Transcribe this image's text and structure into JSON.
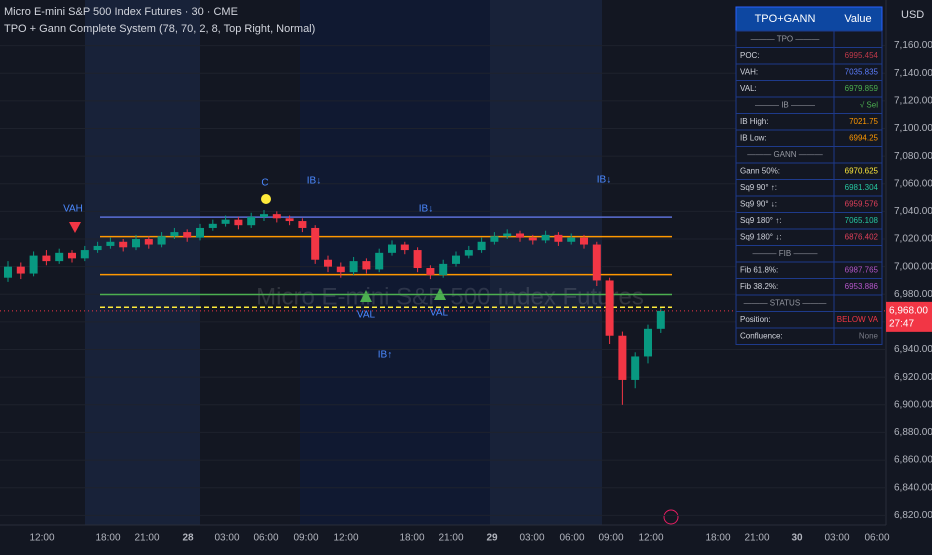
{
  "header": {
    "symbol": "Micro E-mini S&P 500 Index Futures · 30 · CME",
    "indicator": "TPO + Gann Complete System (78, 70, 2, 8, Top Right, Normal)",
    "currency": "USD"
  },
  "chart_data": {
    "type": "candlestick",
    "watermark": "Micro E-mini S&P 500 Index Futures",
    "up_color": "#089981",
    "down_color": "#f23645",
    "open": [
      6992,
      7000,
      6995,
      7008,
      7004,
      7010,
      7006,
      7012,
      7015,
      7018,
      7014,
      7020,
      7016,
      7022,
      7025,
      7021,
      7028,
      7031,
      7034,
      7030,
      7036,
      7038,
      7035,
      7033,
      7028,
      7005,
      7000,
      6996,
      7004,
      6998,
      7010,
      7016,
      7012,
      6999,
      6994,
      7002,
      7008,
      7012,
      7018,
      7022,
      7024,
      7021,
      7019,
      7023,
      7018,
      7021,
      7016,
      6990,
      6950,
      6918,
      6935,
      6955
    ],
    "high": [
      7004,
      7003,
      7011,
      7012,
      7013,
      7012,
      7015,
      7018,
      7021,
      7020,
      7023,
      7022,
      7025,
      7028,
      7027,
      7031,
      7034,
      7037,
      7036,
      7039,
      7041,
      7040,
      7037,
      7035,
      7030,
      7008,
      7003,
      7007,
      7006,
      7013,
      7019,
      7018,
      7014,
      7001,
      7005,
      7011,
      7015,
      7021,
      7025,
      7027,
      7026,
      7023,
      7026,
      7025,
      7024,
      7023,
      7018,
      6992,
      6953,
      6938,
      6958,
      6970
    ],
    "low": [
      6989,
      6991,
      6993,
      7001,
      7002,
      7003,
      7004,
      7010,
      7013,
      7011,
      7012,
      7013,
      7014,
      7020,
      7018,
      7019,
      7026,
      7029,
      7027,
      7028,
      7033,
      7032,
      7030,
      7025,
      7002,
      6996,
      6992,
      6994,
      6995,
      6996,
      7008,
      7009,
      6996,
      6991,
      6992,
      7000,
      7006,
      7010,
      7016,
      7020,
      7018,
      7016,
      7017,
      7015,
      7016,
      7013,
      6986,
      6944,
      6900,
      6912,
      6930,
      6952
    ],
    "close": [
      7000,
      6995,
      7008,
      7004,
      7010,
      7006,
      7012,
      7015,
      7018,
      7014,
      7020,
      7016,
      7022,
      7025,
      7021,
      7028,
      7031,
      7034,
      7030,
      7036,
      7038,
      7035,
      7033,
      7028,
      7005,
      7000,
      6996,
      7004,
      6998,
      7010,
      7016,
      7012,
      6999,
      6994,
      7002,
      7008,
      7012,
      7018,
      7022,
      7024,
      7021,
      7019,
      7023,
      7018,
      7021,
      7016,
      6990,
      6950,
      6918,
      6935,
      6955,
      6968
    ],
    "ylim": [
      6813,
      7193
    ],
    "yticks": [
      {
        "value": 7160,
        "label": "7,160.00"
      },
      {
        "value": 7140,
        "label": "7,140.00"
      },
      {
        "value": 7120,
        "label": "7,120.00"
      },
      {
        "value": 7100,
        "label": "7,100.00"
      },
      {
        "value": 7080,
        "label": "7,080.00"
      },
      {
        "value": 7060,
        "label": "7,060.00"
      },
      {
        "value": 7040,
        "label": "7,040.00"
      },
      {
        "value": 7020,
        "label": "7,020.00"
      },
      {
        "value": 7000,
        "label": "7,000.00"
      },
      {
        "value": 6980,
        "label": "6,980.00"
      },
      {
        "value": 6960,
        "label": "6,960.00"
      },
      {
        "value": 6940,
        "label": "6,940.00"
      },
      {
        "value": 6920,
        "label": "6,920.00"
      },
      {
        "value": 6900,
        "label": "6,900.00"
      },
      {
        "value": 6880,
        "label": "6,880.00"
      },
      {
        "value": 6860,
        "label": "6,860.00"
      },
      {
        "value": 6840,
        "label": "6,840.00"
      },
      {
        "value": 6820,
        "label": "6,820.00"
      }
    ],
    "time_labels": [
      "12:00",
      "18:00",
      "21:00",
      "28",
      "03:00",
      "06:00",
      "09:00",
      "12:00",
      "18:00",
      "21:00",
      "29",
      "03:00",
      "06:00",
      "09:00",
      "12:00",
      "18:00",
      "21:00",
      "30",
      "03:00",
      "06:00"
    ],
    "levels": [
      {
        "value": 7021.75,
        "color": "#ff9800"
      },
      {
        "value": 6994.25,
        "color": "#ff9800"
      },
      {
        "value": 7035.835,
        "color": "#5b6fd6"
      },
      {
        "value": 6979.859,
        "color": "#4caf50"
      },
      {
        "value": 6970.625,
        "color": "#ffeb3b"
      }
    ],
    "last_price": {
      "value": 6968,
      "label": "6,968.00"
    },
    "countdown": "27:47",
    "annotations": [
      {
        "text": "VAH",
        "color": "#4b89ff"
      },
      {
        "text": "VAL",
        "color": "#4b89ff"
      },
      {
        "text": "VAL",
        "color": "#4b89ff"
      },
      {
        "text": "IB↑",
        "color": "#4b89ff"
      },
      {
        "text": "IB↓",
        "color": "#4b89ff"
      },
      {
        "text": "IB↓",
        "color": "#4b89ff"
      },
      {
        "text": "IB↓",
        "color": "#4b89ff"
      },
      {
        "text": "C",
        "color": "#4b89ff"
      }
    ]
  },
  "table": {
    "headers": [
      "TPO+GANN",
      "Value"
    ],
    "rows": [
      {
        "section": "——— TPO ———"
      },
      {
        "label": "POC:",
        "value": "6995.454",
        "color": "#c0394a"
      },
      {
        "label": "VAH:",
        "value": "7035.835",
        "color": "#5b7cfa"
      },
      {
        "label": "VAL:",
        "value": "6979.859",
        "color": "#4caf50"
      },
      {
        "section": "——— IB ———",
        "value": "√ Sel",
        "color": "#4caf50"
      },
      {
        "label": "IB High:",
        "value": "7021.75",
        "color": "#ff9800"
      },
      {
        "label": "IB Low:",
        "value": "6994.25",
        "color": "#ff9800"
      },
      {
        "section": "——— GANN ———"
      },
      {
        "label": "Gann 50%:",
        "value": "6970.625",
        "color": "#ffeb3b"
      },
      {
        "label": "Sq9 90° ↑:",
        "value": "6981.304",
        "color": "#26c6a0"
      },
      {
        "label": "Sq9 90° ↓:",
        "value": "6959.576",
        "color": "#e0405a"
      },
      {
        "label": "Sq9 180° ↑:",
        "value": "7065.108",
        "color": "#26c6a0"
      },
      {
        "label": "Sq9 180° ↓:",
        "value": "6876.402",
        "color": "#e0405a"
      },
      {
        "section": "——— FIB ———"
      },
      {
        "label": "Fib 61.8%:",
        "value": "6987.765",
        "color": "#b455c8"
      },
      {
        "label": "Fib 38.2%:",
        "value": "6953.886",
        "color": "#b455c8"
      },
      {
        "section": "——— STATUS ———"
      },
      {
        "label": "Position:",
        "value": "BELOW VA",
        "color": "#f23645"
      },
      {
        "label": "Confluence:",
        "value": "None",
        "color": "#787b86"
      }
    ]
  }
}
